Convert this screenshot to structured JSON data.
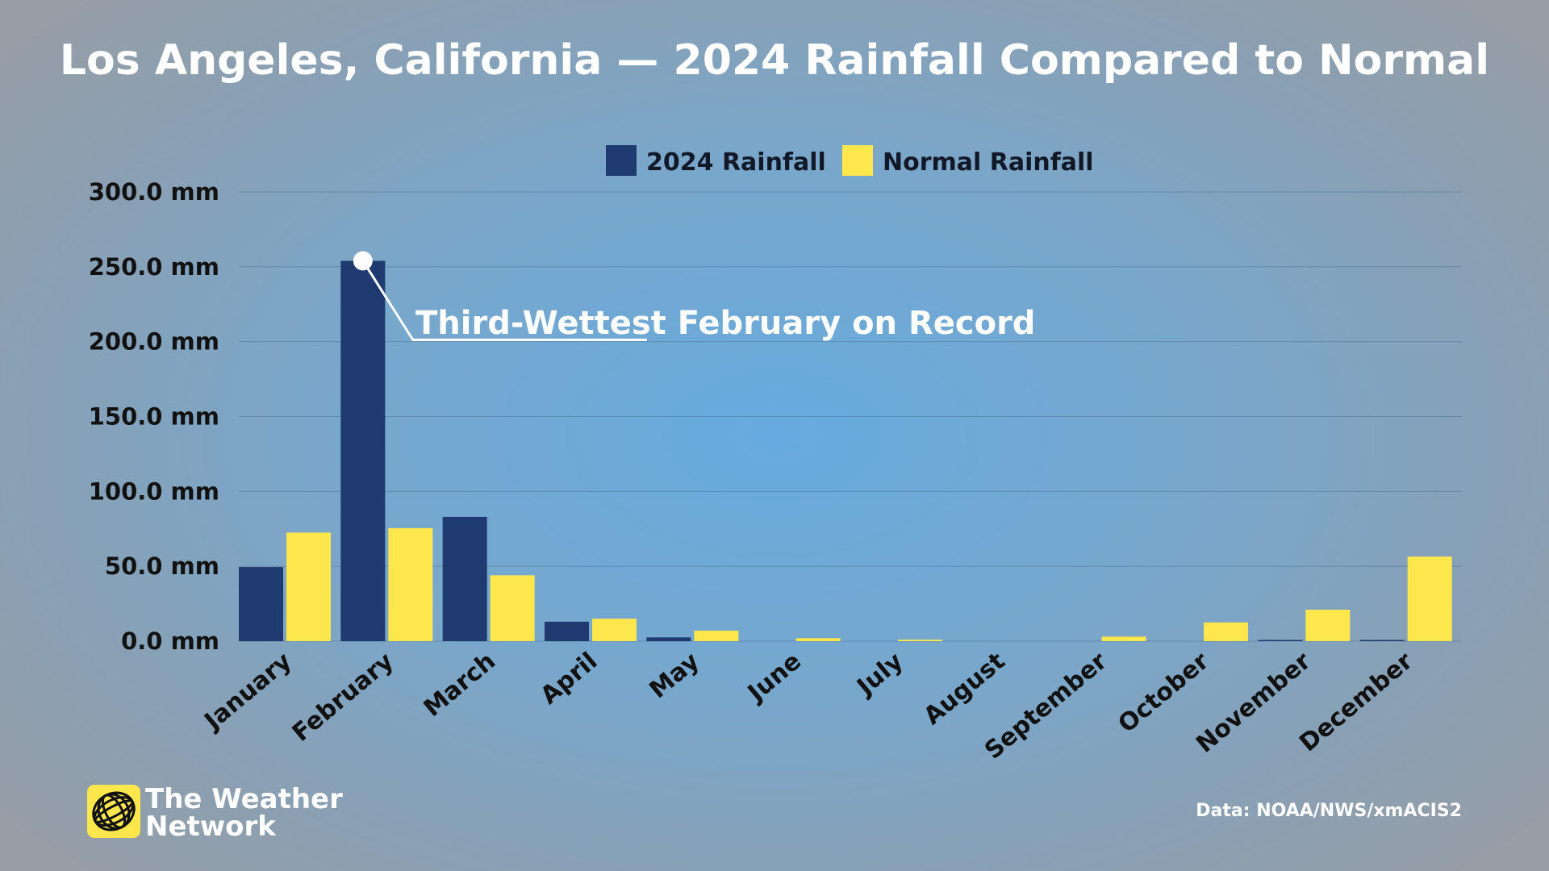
{
  "header": {
    "title": "Los Angeles, California — 2024 Rainfall Compared to Normal"
  },
  "colors": {
    "series_2024": "#1f3a6e",
    "series_normal": "#fde74c",
    "annotation": "#ffffff",
    "logo_bg": "#fde74c"
  },
  "chart_data": {
    "type": "bar",
    "title": "Los Angeles, California — 2024 Rainfall Compared to Normal",
    "xlabel": "",
    "ylabel": "",
    "categories": [
      "January",
      "February",
      "March",
      "April",
      "May",
      "June",
      "July",
      "August",
      "September",
      "October",
      "November",
      "December"
    ],
    "series": [
      {
        "name": "2024 Rainfall",
        "values": [
          49.5,
          254.0,
          83.0,
          13.0,
          2.5,
          0.0,
          0.0,
          0.0,
          0.0,
          0.0,
          0.8,
          0.5
        ]
      },
      {
        "name": "Normal Rainfall",
        "values": [
          72.5,
          75.5,
          44.0,
          15.0,
          7.0,
          2.0,
          1.0,
          0.0,
          3.0,
          12.5,
          21.0,
          56.5
        ]
      }
    ],
    "ylim": [
      0,
      300
    ],
    "yticks": [
      0,
      50,
      100,
      150,
      200,
      250,
      300
    ],
    "ytick_labels": [
      "0.0 mm",
      "50.0 mm",
      "100.0 mm",
      "150.0 mm",
      "200.0 mm",
      "250.0 mm",
      "300.0 mm"
    ],
    "grid": true,
    "legend": {
      "placement": "top-center",
      "items": [
        "2024 Rainfall",
        "Normal Rainfall"
      ]
    },
    "annotations": [
      {
        "text": "Third-Wettest February on Record",
        "category": "February",
        "series": "2024 Rainfall",
        "value": 254.0
      }
    ]
  },
  "footer": {
    "logo_line1": "The Weather",
    "logo_line2": "Network",
    "logo_icon": "globe-icon",
    "source": "Data: NOAA/NWS/xmACIS2"
  }
}
